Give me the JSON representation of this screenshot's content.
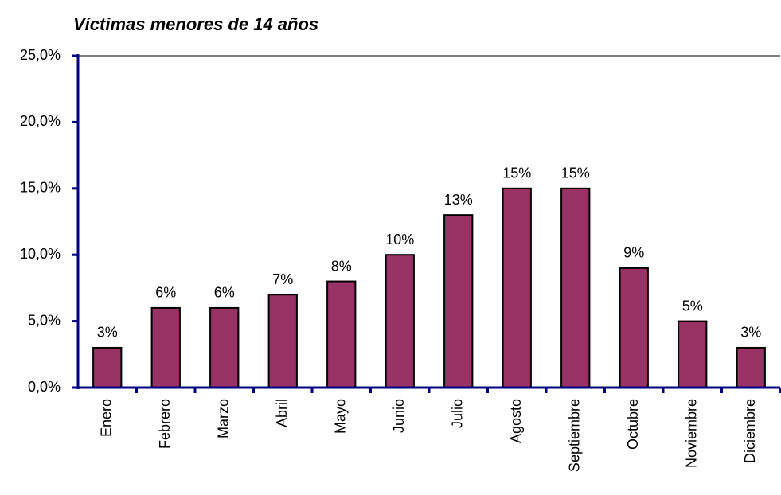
{
  "chart_data": {
    "type": "bar",
    "title": "Víctimas menores de 14 años",
    "categories": [
      "Enero",
      "Febrero",
      "Marzo",
      "Abril",
      "Mayo",
      "Junio",
      "Julio",
      "Agosto",
      "Septiembre",
      "Octubre",
      "Noviembre",
      "Diciembre"
    ],
    "values": [
      3,
      6,
      6,
      7,
      8,
      10,
      13,
      15,
      15,
      9,
      5,
      3
    ],
    "value_labels": [
      "3%",
      "6%",
      "6%",
      "7%",
      "8%",
      "10%",
      "13%",
      "15%",
      "15%",
      "9%",
      "5%",
      "3%"
    ],
    "color": "#993366",
    "ylim": [
      0,
      25
    ],
    "yticks": [
      {
        "value": 0,
        "label": "0,0%"
      },
      {
        "value": 5,
        "label": "5,0%"
      },
      {
        "value": 10,
        "label": "10,0%"
      },
      {
        "value": 15,
        "label": "15,0%"
      },
      {
        "value": 20,
        "label": "20,0%"
      },
      {
        "value": 25,
        "label": "25,0%"
      }
    ],
    "grid": false
  }
}
